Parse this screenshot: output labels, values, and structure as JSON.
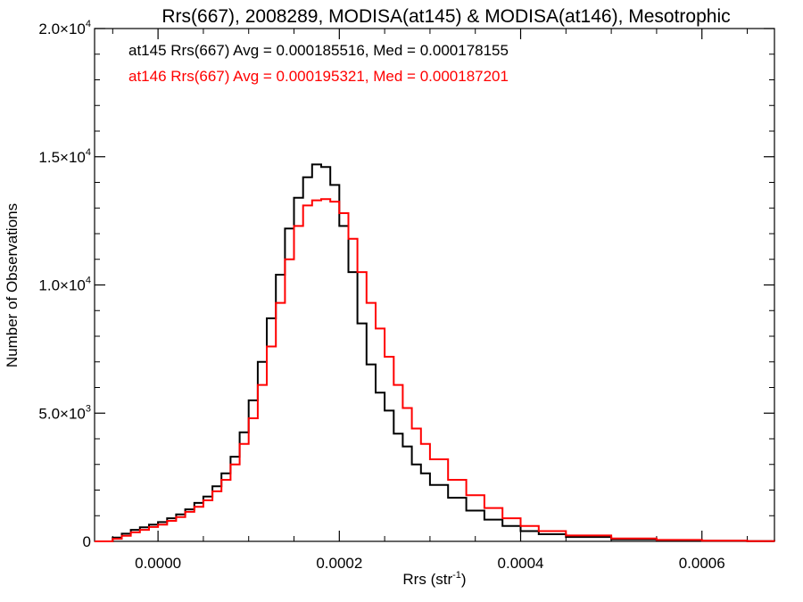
{
  "chart_data": {
    "type": "line",
    "title": "Rrs(667), 2008289, MODISA(at145) & MODISA(at146), Mesotrophic",
    "xlabel_base": "Rrs (str",
    "xlabel_exp": "-1",
    "xlabel_close": ")",
    "ylabel": "Number of Observations",
    "xlim": [
      -7e-05,
      0.00068
    ],
    "ylim": [
      0,
      20000
    ],
    "x_ticks": [
      {
        "value": 0.0,
        "label": "0.0000"
      },
      {
        "value": 0.0002,
        "label": "0.0002"
      },
      {
        "value": 0.0004,
        "label": "0.0004"
      },
      {
        "value": 0.0006,
        "label": "0.0006"
      }
    ],
    "y_ticks": [
      {
        "value": 0,
        "mant": "0",
        "exp": ""
      },
      {
        "value": 5000,
        "mant": "5.0×10",
        "exp": "3"
      },
      {
        "value": 10000,
        "mant": "1.0×10",
        "exp": "4"
      },
      {
        "value": 15000,
        "mant": "1.5×10",
        "exp": "4"
      },
      {
        "value": 20000,
        "mant": "2.0×10",
        "exp": "4"
      }
    ],
    "annotations": [
      {
        "text": "at145 Rrs(667) Avg = 0.000185516, Med = 0.000178155",
        "color": "#000000"
      },
      {
        "text": "at146 Rrs(667) Avg = 0.000195321, Med = 0.000187201",
        "color": "#ff0000"
      }
    ],
    "series": [
      {
        "color": "#000000",
        "x": [
          -7e-05,
          -5e-05,
          -4e-05,
          -3e-05,
          -2e-05,
          -1e-05,
          0.0,
          1e-05,
          2e-05,
          3e-05,
          4e-05,
          5e-05,
          6e-05,
          7e-05,
          8e-05,
          9e-05,
          0.0001,
          0.00011,
          0.00012,
          0.00013,
          0.00014,
          0.00015,
          0.00016,
          0.00017,
          0.00018,
          0.00019,
          0.0002,
          0.00021,
          0.00022,
          0.00023,
          0.00024,
          0.00025,
          0.00026,
          0.00027,
          0.00028,
          0.00029,
          0.0003,
          0.00032,
          0.00034,
          0.00036,
          0.00038,
          0.0004,
          0.00042,
          0.00045,
          0.0005,
          0.00055,
          0.0006,
          0.00065,
          0.00068
        ],
        "y": [
          0,
          150,
          300,
          450,
          550,
          650,
          750,
          900,
          1050,
          1250,
          1500,
          1750,
          2150,
          2650,
          3300,
          4250,
          5500,
          7000,
          8700,
          10400,
          12200,
          13400,
          14200,
          14700,
          14600,
          13900,
          12300,
          10500,
          8500,
          6900,
          5800,
          5100,
          4200,
          3700,
          3000,
          2650,
          2200,
          1700,
          1200,
          850,
          600,
          400,
          280,
          170,
          80,
          40,
          20,
          10,
          5
        ]
      },
      {
        "color": "#ff0000",
        "x": [
          -7e-05,
          -5e-05,
          -4e-05,
          -3e-05,
          -2e-05,
          -1e-05,
          0.0,
          1e-05,
          2e-05,
          3e-05,
          4e-05,
          5e-05,
          6e-05,
          7e-05,
          8e-05,
          9e-05,
          0.0001,
          0.00011,
          0.00012,
          0.00013,
          0.00014,
          0.00015,
          0.00016,
          0.00017,
          0.00018,
          0.00019,
          0.0002,
          0.00021,
          0.00022,
          0.00023,
          0.00024,
          0.00025,
          0.00026,
          0.00027,
          0.00028,
          0.00029,
          0.0003,
          0.00032,
          0.00034,
          0.00036,
          0.00038,
          0.0004,
          0.00042,
          0.00045,
          0.0005,
          0.00055,
          0.0006,
          0.00065,
          0.00068
        ],
        "y": [
          0,
          100,
          220,
          350,
          450,
          560,
          650,
          800,
          950,
          1150,
          1350,
          1600,
          1950,
          2400,
          3000,
          3800,
          4800,
          6100,
          7600,
          9300,
          11000,
          12300,
          13100,
          13300,
          13350,
          13250,
          12800,
          11800,
          10500,
          9300,
          8300,
          7200,
          6100,
          5200,
          4400,
          3800,
          3200,
          2400,
          1800,
          1300,
          900,
          600,
          400,
          230,
          110,
          55,
          25,
          12,
          5
        ]
      }
    ]
  }
}
